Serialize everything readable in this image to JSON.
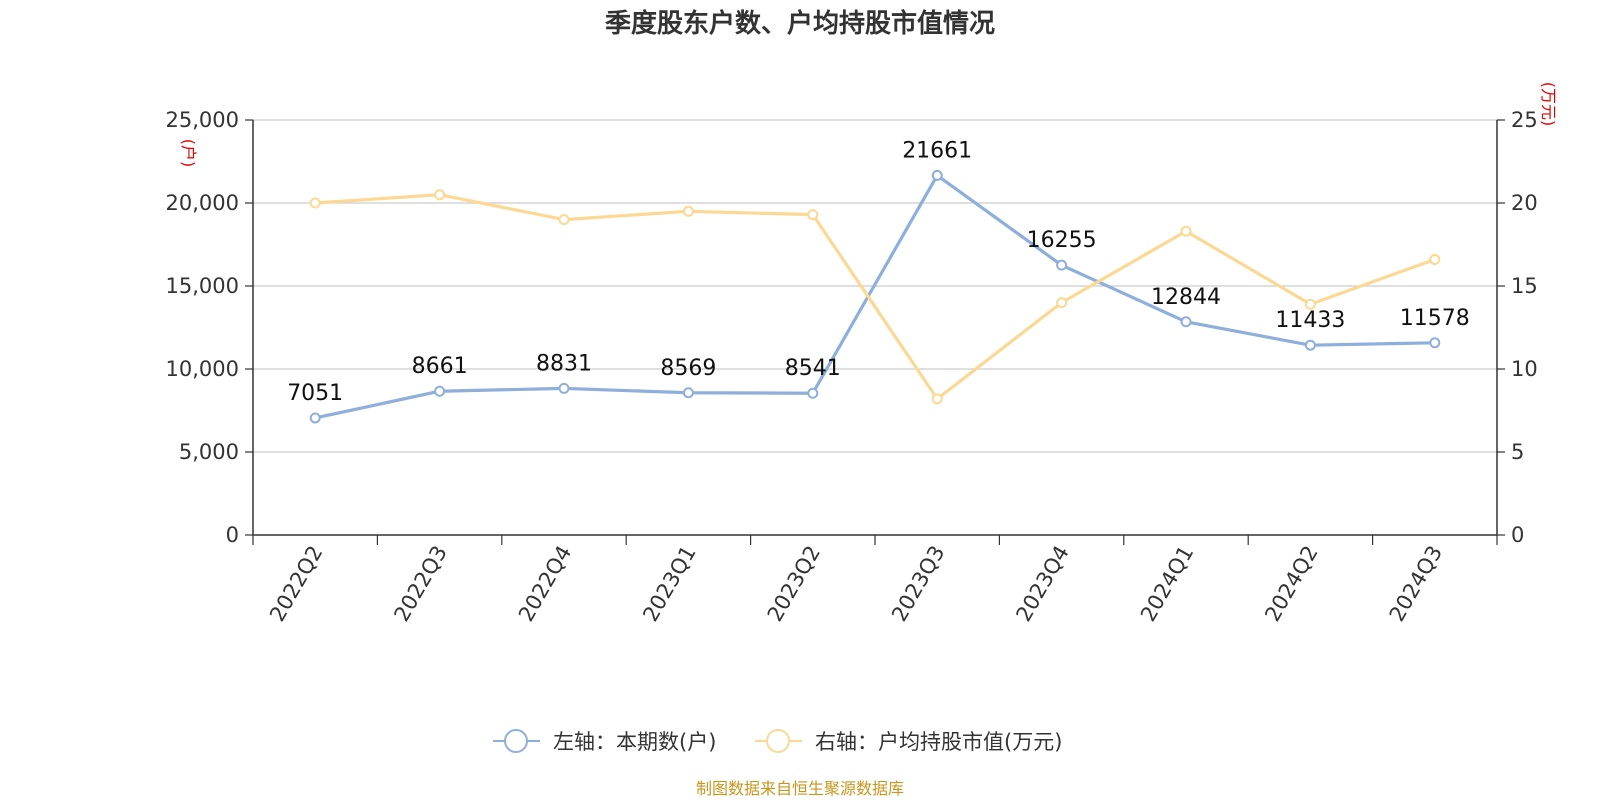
{
  "chart_data": {
    "type": "line",
    "title": "季度股东户数、户均持股市值情况",
    "categories": [
      "2022Q2",
      "2022Q3",
      "2022Q4",
      "2023Q1",
      "2023Q2",
      "2023Q3",
      "2023Q4",
      "2024Q1",
      "2024Q2",
      "2024Q3"
    ],
    "left_axis": {
      "unit": "(户)",
      "ylim": [
        0,
        25000
      ],
      "ticks": [
        "0",
        "5,000",
        "10,000",
        "15,000",
        "20,000",
        "25,000"
      ],
      "tick_values": [
        0,
        5000,
        10000,
        15000,
        20000,
        25000
      ]
    },
    "right_axis": {
      "unit": "(万元)",
      "ylim": [
        0,
        25
      ],
      "ticks": [
        "0",
        "5",
        "10",
        "15",
        "20",
        "25"
      ],
      "tick_values": [
        0,
        5,
        10,
        15,
        20,
        25
      ]
    },
    "series": [
      {
        "name": "左轴：本期数(户)",
        "axis": "left",
        "color": "#8eaedb",
        "values": [
          7051,
          8661,
          8831,
          8569,
          8541,
          21661,
          16255,
          12844,
          11433,
          11578
        ],
        "labels": [
          "7051",
          "8661",
          "8831",
          "8569",
          "8541",
          "21661",
          "16255",
          "12844",
          "11433",
          "11578"
        ]
      },
      {
        "name": "右轴：户均持股市值(万元)",
        "axis": "right",
        "color": "#fbd893",
        "values": [
          20.0,
          20.5,
          19.0,
          19.5,
          19.3,
          8.2,
          14.0,
          18.3,
          13.9,
          16.6
        ]
      }
    ],
    "grid": true,
    "legend_position": "bottom"
  },
  "source": "制图数据来自恒生聚源数据库"
}
